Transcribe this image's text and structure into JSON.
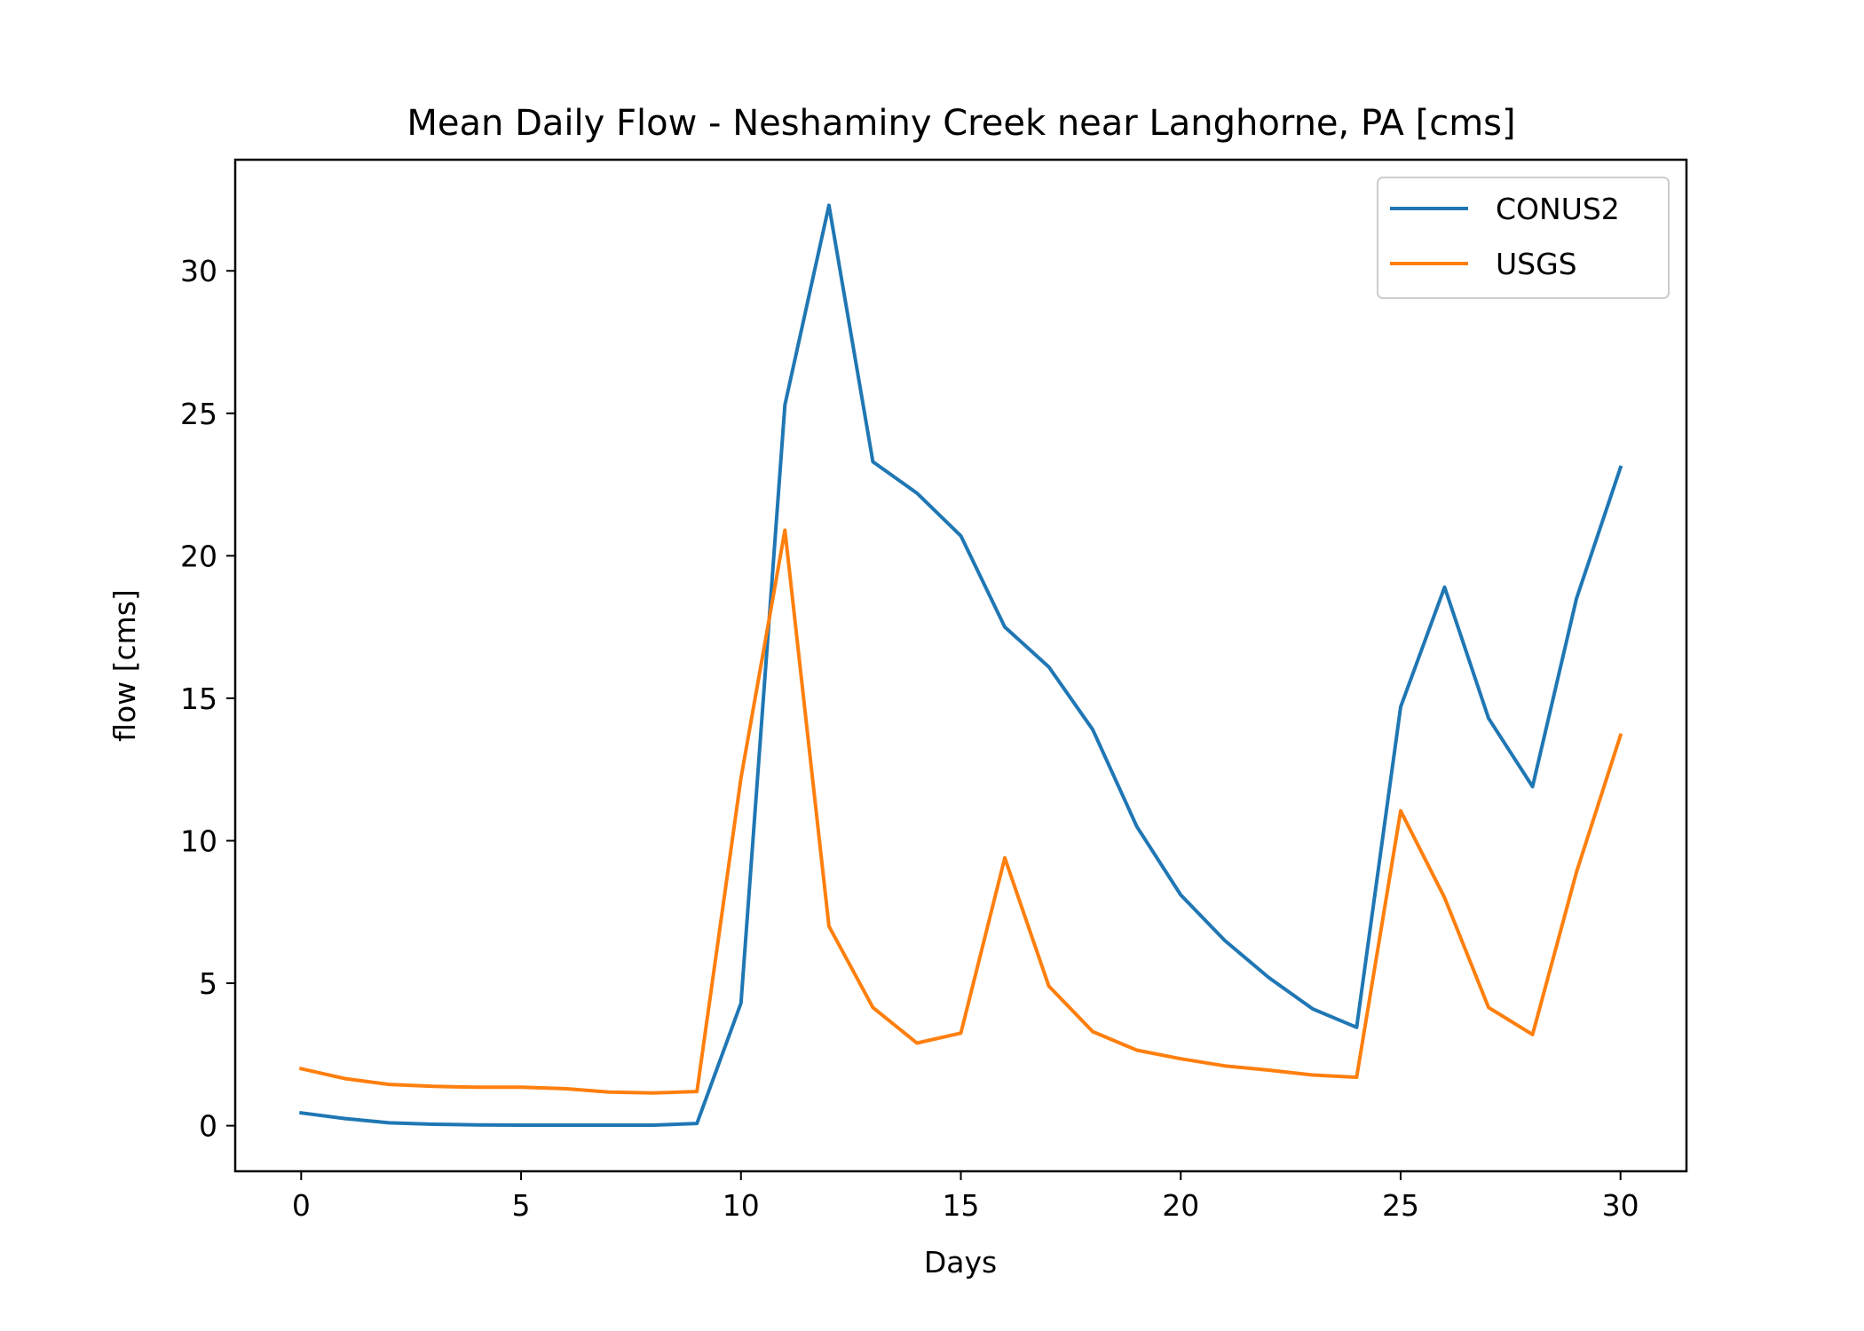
{
  "chart_data": {
    "type": "line",
    "title": "Mean Daily Flow - Neshaminy Creek near Langhorne, PA [cms]",
    "xlabel": "Days",
    "ylabel": "flow [cms]",
    "xlim": [
      -1.5,
      31.5
    ],
    "ylim": [
      -1.6,
      33.9
    ],
    "xticks": [
      0,
      5,
      10,
      15,
      20,
      25,
      30
    ],
    "yticks": [
      0,
      5,
      10,
      15,
      20,
      25,
      30
    ],
    "grid": false,
    "legend_position": "upper right",
    "x": [
      0,
      1,
      2,
      3,
      4,
      5,
      6,
      7,
      8,
      9,
      10,
      11,
      12,
      13,
      14,
      15,
      16,
      17,
      18,
      19,
      20,
      21,
      22,
      23,
      24,
      25,
      26,
      27,
      28,
      29,
      30
    ],
    "series": [
      {
        "name": "CONUS2",
        "color": "#1f77b4",
        "values": [
          0.45,
          0.25,
          0.1,
          0.05,
          0.03,
          0.02,
          0.02,
          0.02,
          0.02,
          0.08,
          4.3,
          25.3,
          32.3,
          23.3,
          22.2,
          20.7,
          17.5,
          16.1,
          13.9,
          10.5,
          8.1,
          6.5,
          5.2,
          4.1,
          3.45,
          14.7,
          18.9,
          14.3,
          11.9,
          18.5,
          23.1
        ]
      },
      {
        "name": "USGS",
        "color": "#ff7f0e",
        "values": [
          2.0,
          1.65,
          1.45,
          1.38,
          1.35,
          1.35,
          1.3,
          1.18,
          1.15,
          1.2,
          12.2,
          20.9,
          7.0,
          4.15,
          2.9,
          3.25,
          9.4,
          4.9,
          3.3,
          2.65,
          2.35,
          2.1,
          1.95,
          1.78,
          1.7,
          11.05,
          8.0,
          4.15,
          3.2,
          8.9,
          13.7
        ]
      }
    ]
  }
}
